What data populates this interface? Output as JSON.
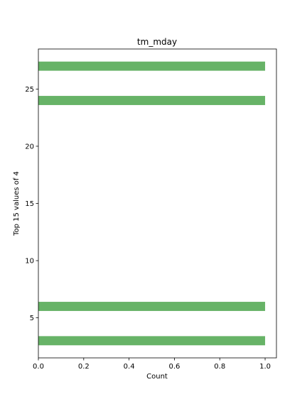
{
  "chart_data": {
    "type": "bar",
    "orientation": "horizontal",
    "title": "tm_mday",
    "xlabel": "Count",
    "ylabel": "Top 15 values of 4",
    "xlim": [
      0,
      1.05
    ],
    "ylim": [
      1.5,
      28.5
    ],
    "xticks": [
      0.0,
      0.2,
      0.4,
      0.6,
      0.8,
      1.0
    ],
    "xtick_labels": [
      "0.0",
      "0.2",
      "0.4",
      "0.6",
      "0.8",
      "1.0"
    ],
    "yticks": [
      5,
      10,
      15,
      20,
      25
    ],
    "ytick_labels": [
      "5",
      "10",
      "15",
      "20",
      "25"
    ],
    "categories": [
      27,
      24,
      6,
      3
    ],
    "values": [
      1,
      1,
      1,
      1
    ],
    "bar_color": "#4ca64c",
    "bar_opacity": 0.85,
    "grid": false,
    "legend": false
  }
}
